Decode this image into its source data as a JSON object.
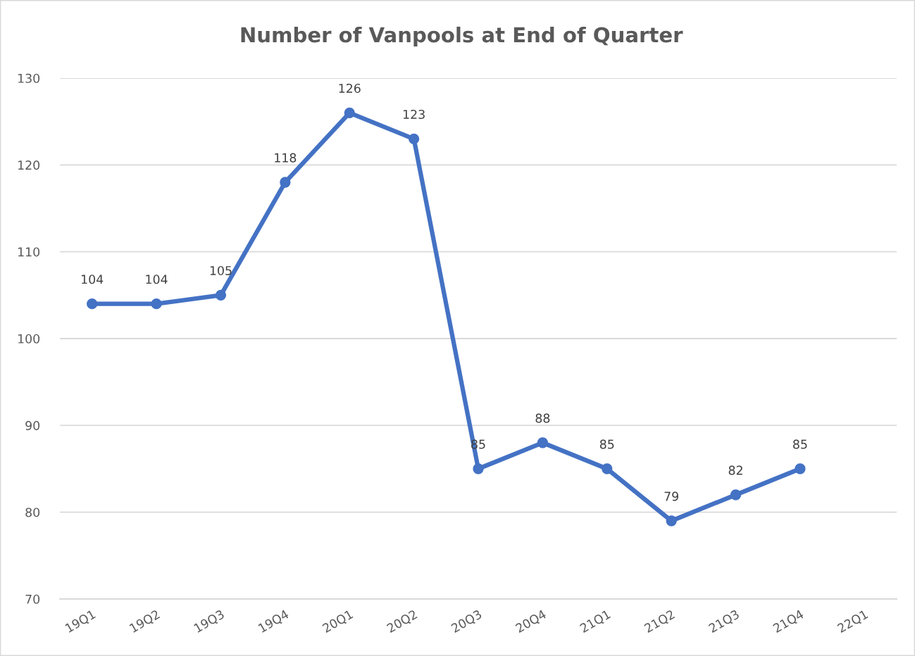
{
  "chart_data": {
    "type": "line",
    "title": "Number of Vanpools at End of Quarter",
    "categories": [
      "19Q1",
      "19Q2",
      "19Q3",
      "19Q4",
      "20Q1",
      "20Q2",
      "20Q3",
      "20Q4",
      "21Q1",
      "21Q2",
      "21Q3",
      "21Q4",
      "22Q1"
    ],
    "series": [
      {
        "color": "#4472c4",
        "values": [
          104,
          104,
          105,
          118,
          126,
          123,
          85,
          88,
          85,
          79,
          82,
          85,
          null
        ]
      }
    ],
    "ylim": [
      70,
      130
    ],
    "yticks": [
      70,
      80,
      90,
      100,
      110,
      120,
      130
    ],
    "grid": "y",
    "marker": "circle",
    "line_style": "solid",
    "data_labels": true
  }
}
